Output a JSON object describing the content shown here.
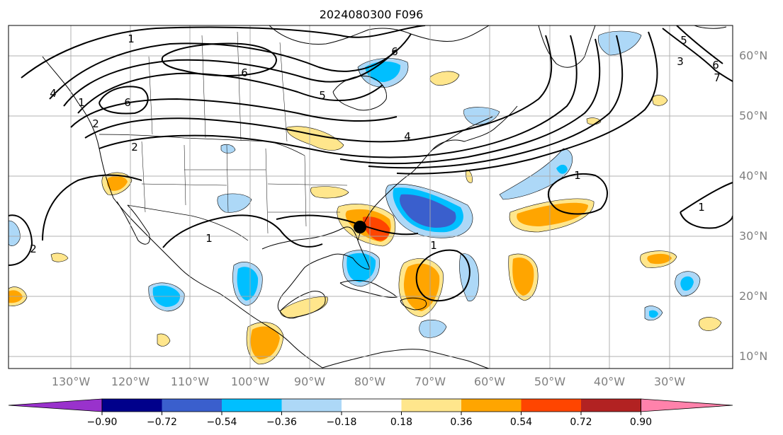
{
  "title": "2024080300 F096",
  "map": {
    "lon_labels": [
      "130°W",
      "120°W",
      "110°W",
      "100°W",
      "90°W",
      "80°W",
      "70°W",
      "60°W",
      "50°W",
      "40°W",
      "30°W"
    ],
    "lat_labels": [
      "60°N",
      "50°N",
      "40°N",
      "30°N",
      "20°N",
      "10°N"
    ],
    "land_color": "#ffffff",
    "grid_color": "#a9a9a9",
    "storm_marker": {
      "lon": -80.3,
      "lat": 31.5,
      "color": "#000000"
    },
    "contour_labels": [
      "1",
      "1",
      "1",
      "1",
      "1",
      "1",
      "2",
      "2",
      "2",
      "3",
      "4",
      "4",
      "5",
      "5",
      "6",
      "6",
      "6",
      "6",
      "7"
    ]
  },
  "colorbar": {
    "tick_labels": [
      "−0.90",
      "−0.72",
      "−0.54",
      "−0.36",
      "−0.18",
      "0.18",
      "0.36",
      "0.54",
      "0.72",
      "0.90"
    ],
    "colors": [
      "#9932cc",
      "#00008b",
      "#3a5fcd",
      "#00bfff",
      "#add8f7",
      "#ffffff",
      "#ffe68c",
      "#ffa500",
      "#ff4500",
      "#b22222",
      "#ff82ab"
    ]
  }
}
